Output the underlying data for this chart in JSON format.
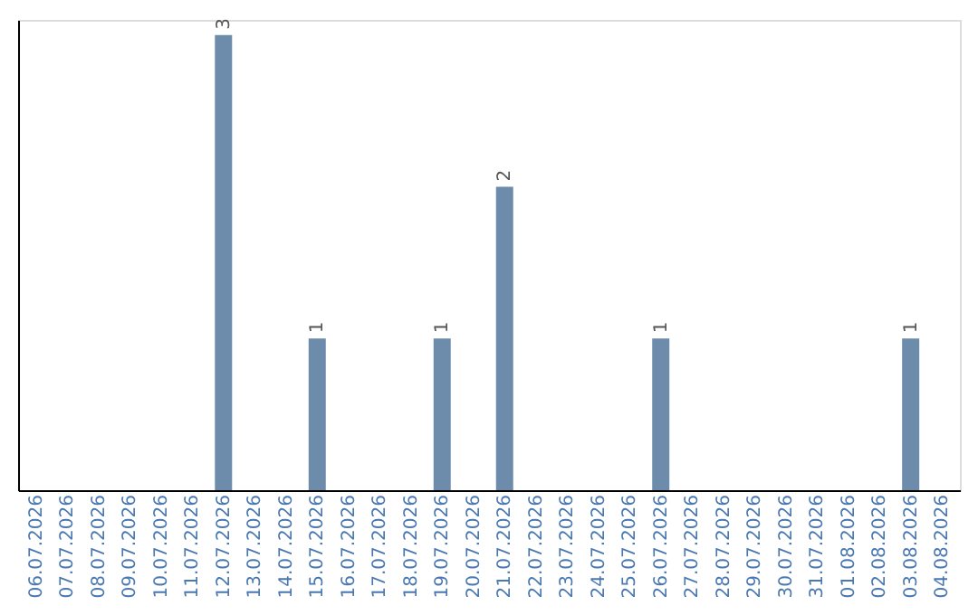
{
  "chart_data": {
    "type": "bar",
    "categories": [
      "06.07.2026",
      "07.07.2026",
      "08.07.2026",
      "09.07.2026",
      "10.07.2026",
      "11.07.2026",
      "12.07.2026",
      "13.07.2026",
      "14.07.2026",
      "15.07.2026",
      "16.07.2026",
      "17.07.2026",
      "18.07.2026",
      "19.07.2026",
      "20.07.2026",
      "21.07.2026",
      "22.07.2026",
      "23.07.2026",
      "24.07.2026",
      "25.07.2026",
      "26.07.2026",
      "27.07.2026",
      "28.07.2026",
      "29.07.2026",
      "30.07.2026",
      "31.07.2026",
      "01.08.2026",
      "02.08.2026",
      "03.08.2026",
      "04.08.2026"
    ],
    "values": [
      null,
      null,
      null,
      null,
      null,
      null,
      3,
      null,
      null,
      1,
      null,
      null,
      null,
      1,
      null,
      2,
      null,
      null,
      null,
      null,
      1,
      null,
      null,
      null,
      null,
      null,
      null,
      null,
      1,
      null
    ],
    "color": "#6d8baa",
    "ylim": [
      0,
      3.1
    ],
    "data_labels": true,
    "tick_labels": "x",
    "grid": false
  }
}
